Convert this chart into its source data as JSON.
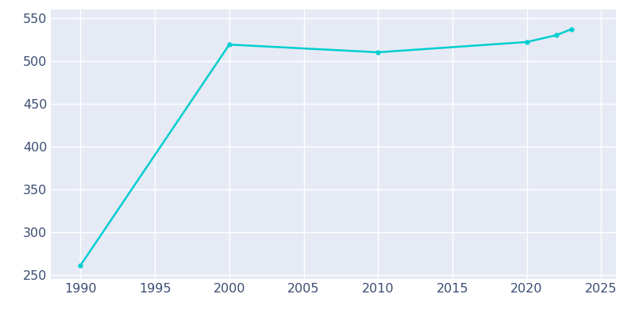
{
  "years": [
    1990,
    2000,
    2010,
    2020,
    2022,
    2023
  ],
  "population": [
    261,
    519,
    510,
    522,
    530,
    537
  ],
  "line_color": "#00CED1",
  "marker": "o",
  "marker_size": 3.5,
  "line_width": 1.8,
  "fig_bg_color": "#FFFFFF",
  "plot_bg_color": "#E6EAF4",
  "grid_color": "#FFFFFF",
  "tick_label_color": "#3A4D72",
  "tick_fontsize": 11.5,
  "xlim": [
    1988,
    2026
  ],
  "ylim": [
    245,
    560
  ],
  "xticks": [
    1990,
    1995,
    2000,
    2005,
    2010,
    2015,
    2020,
    2025
  ],
  "yticks": [
    250,
    300,
    350,
    400,
    450,
    500,
    550
  ]
}
